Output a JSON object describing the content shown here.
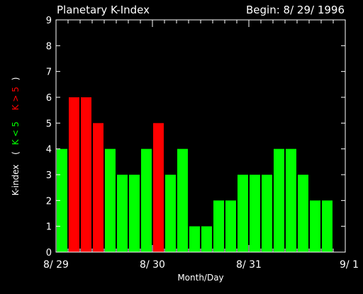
{
  "chart_data": {
    "type": "bar",
    "title": "Planetary K-Index",
    "begin_label": "Begin: 8/ 29/ 1996",
    "xlabel": "Month/Day",
    "ylabel": {
      "prefix": "K-index",
      "open": "(",
      "low_label": "K < 5",
      "high_label": "K > 5",
      "close": ")"
    },
    "ylim": [
      0,
      9
    ],
    "yticks": [
      0,
      1,
      2,
      3,
      4,
      5,
      6,
      7,
      8,
      9
    ],
    "x_tick_labels": [
      "8/ 29",
      "8/ 30",
      "8/ 31",
      "9/ 1"
    ],
    "bars_per_day": 8,
    "threshold": 5,
    "values": [
      4,
      6,
      6,
      5,
      4,
      3,
      3,
      4,
      5,
      3,
      4,
      1,
      1,
      2,
      2,
      3,
      3,
      3,
      4,
      4,
      3,
      2,
      2
    ],
    "colors": {
      "background": "#000000",
      "axes": "#ffffff",
      "text": "#ffffff",
      "low": "#00ff00",
      "high": "#ff0000"
    }
  }
}
